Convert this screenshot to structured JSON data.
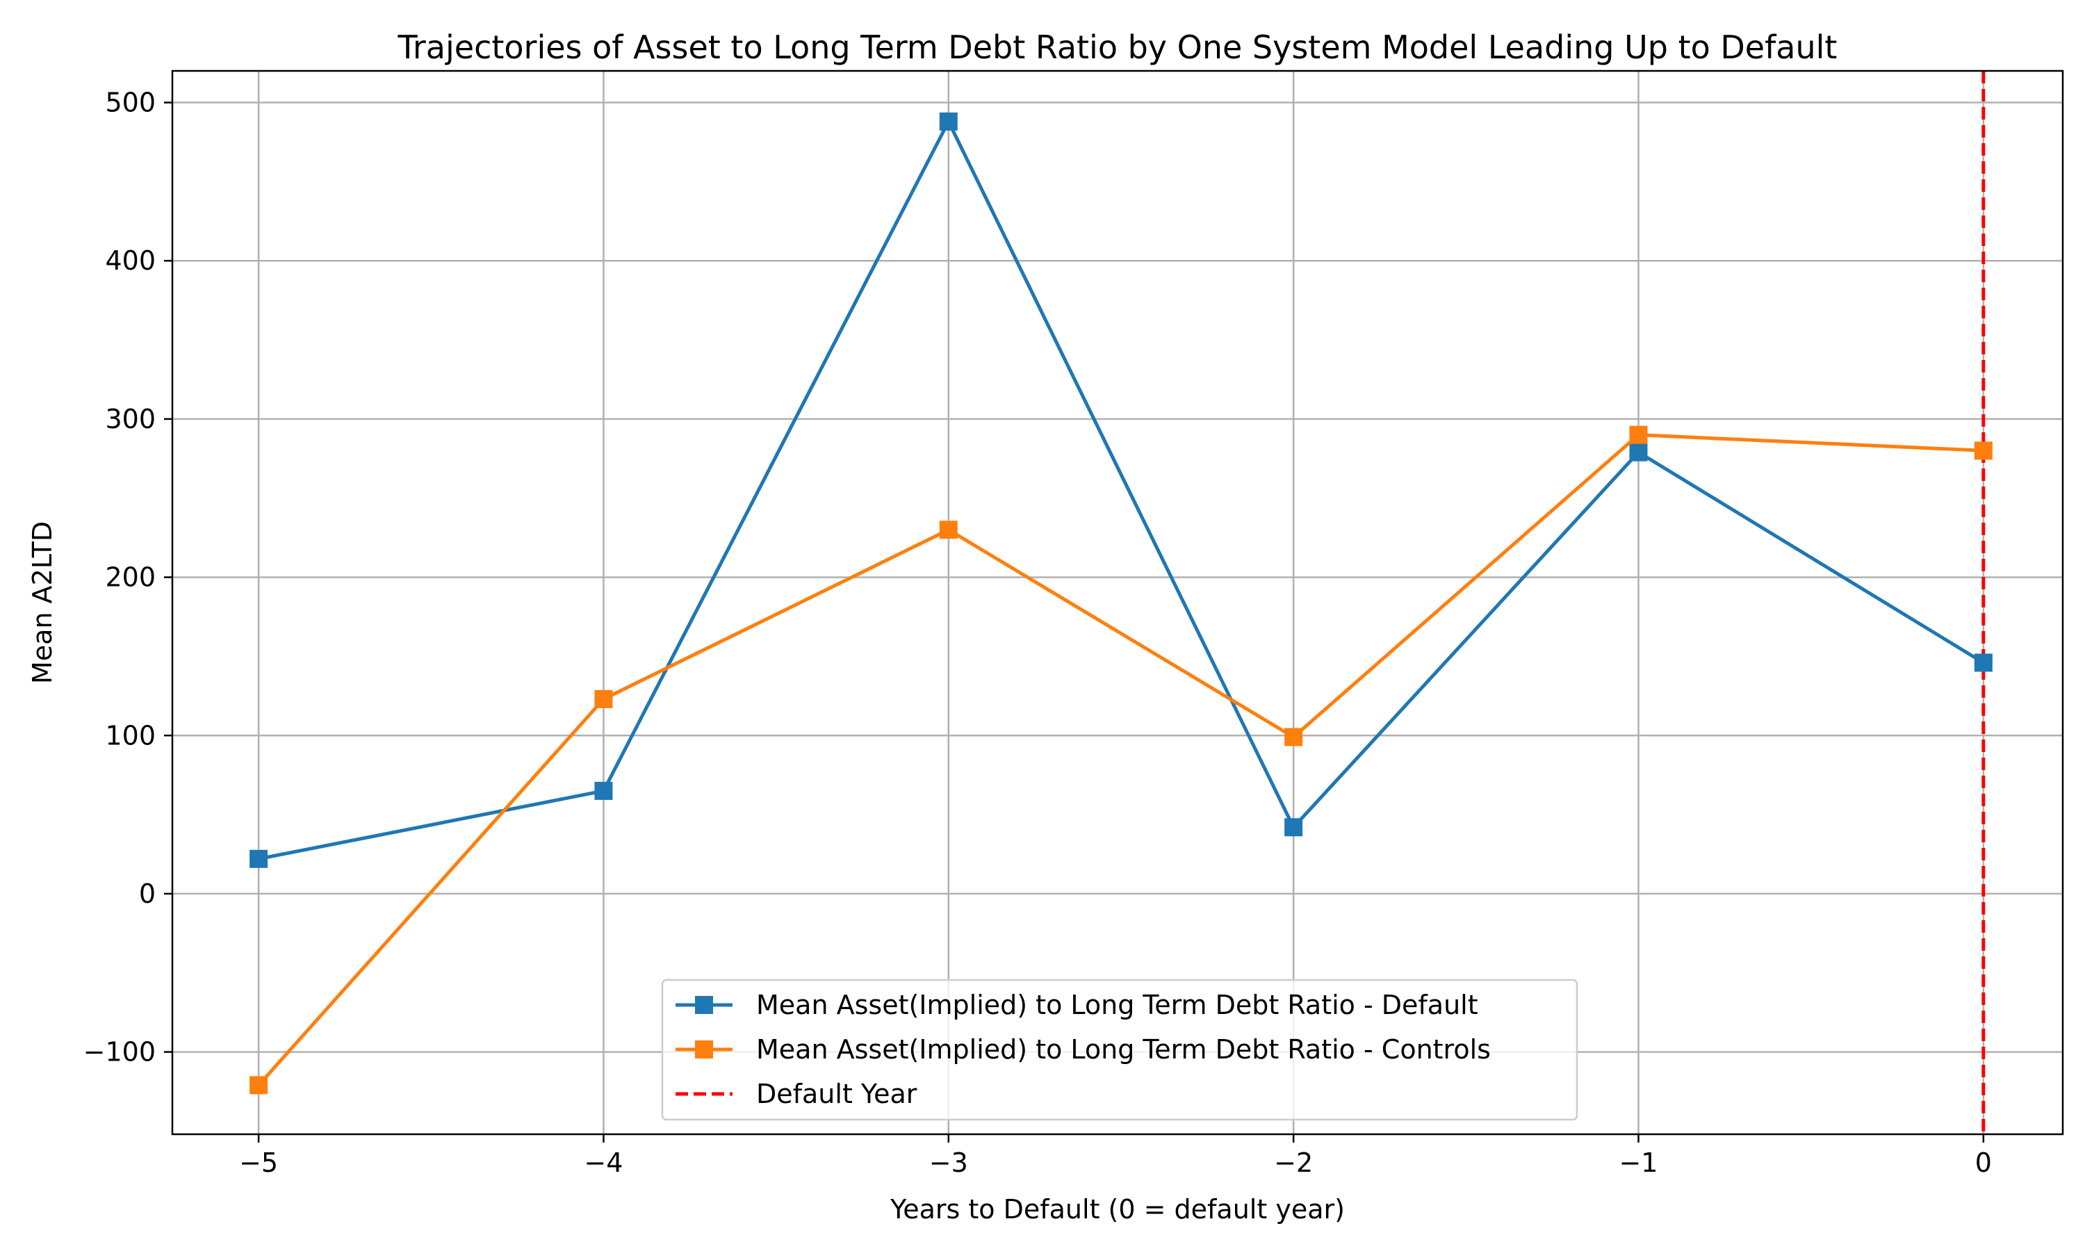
{
  "chart_data": {
    "type": "line",
    "title": "Trajectories of Asset to Long Term Debt Ratio by One System Model Leading Up to Default",
    "xlabel": "Years to Default (0 = default year)",
    "ylabel": "Mean A2LTD",
    "x": [
      -5,
      -4,
      -3,
      -2,
      -1,
      0
    ],
    "x_tick_labels": [
      "−5",
      "−4",
      "−3",
      "−2",
      "−1",
      "0"
    ],
    "y_ticks": [
      -100,
      0,
      100,
      200,
      300,
      400,
      500
    ],
    "y_tick_labels": [
      "−100",
      "0",
      "100",
      "200",
      "300",
      "400",
      "500"
    ],
    "xlim": [
      -5.25,
      0.23
    ],
    "ylim": [
      -152,
      520
    ],
    "grid": true,
    "legend_position": "lower-center",
    "series": [
      {
        "name": "Mean Asset(Implied) to Long Term Debt Ratio - Default",
        "color": "#1f77b4",
        "marker": "square",
        "values": [
          22,
          65,
          488,
          42,
          279,
          146
        ]
      },
      {
        "name": "Mean Asset(Implied) to Long Term Debt Ratio - Controls",
        "color": "#ff7f0e",
        "marker": "square",
        "values": [
          -121,
          123,
          230,
          99,
          290,
          280
        ]
      }
    ],
    "reference_lines": [
      {
        "name": "Default Year",
        "orientation": "vertical",
        "x": 0,
        "color": "#ff0000",
        "style": "dashed"
      }
    ]
  }
}
